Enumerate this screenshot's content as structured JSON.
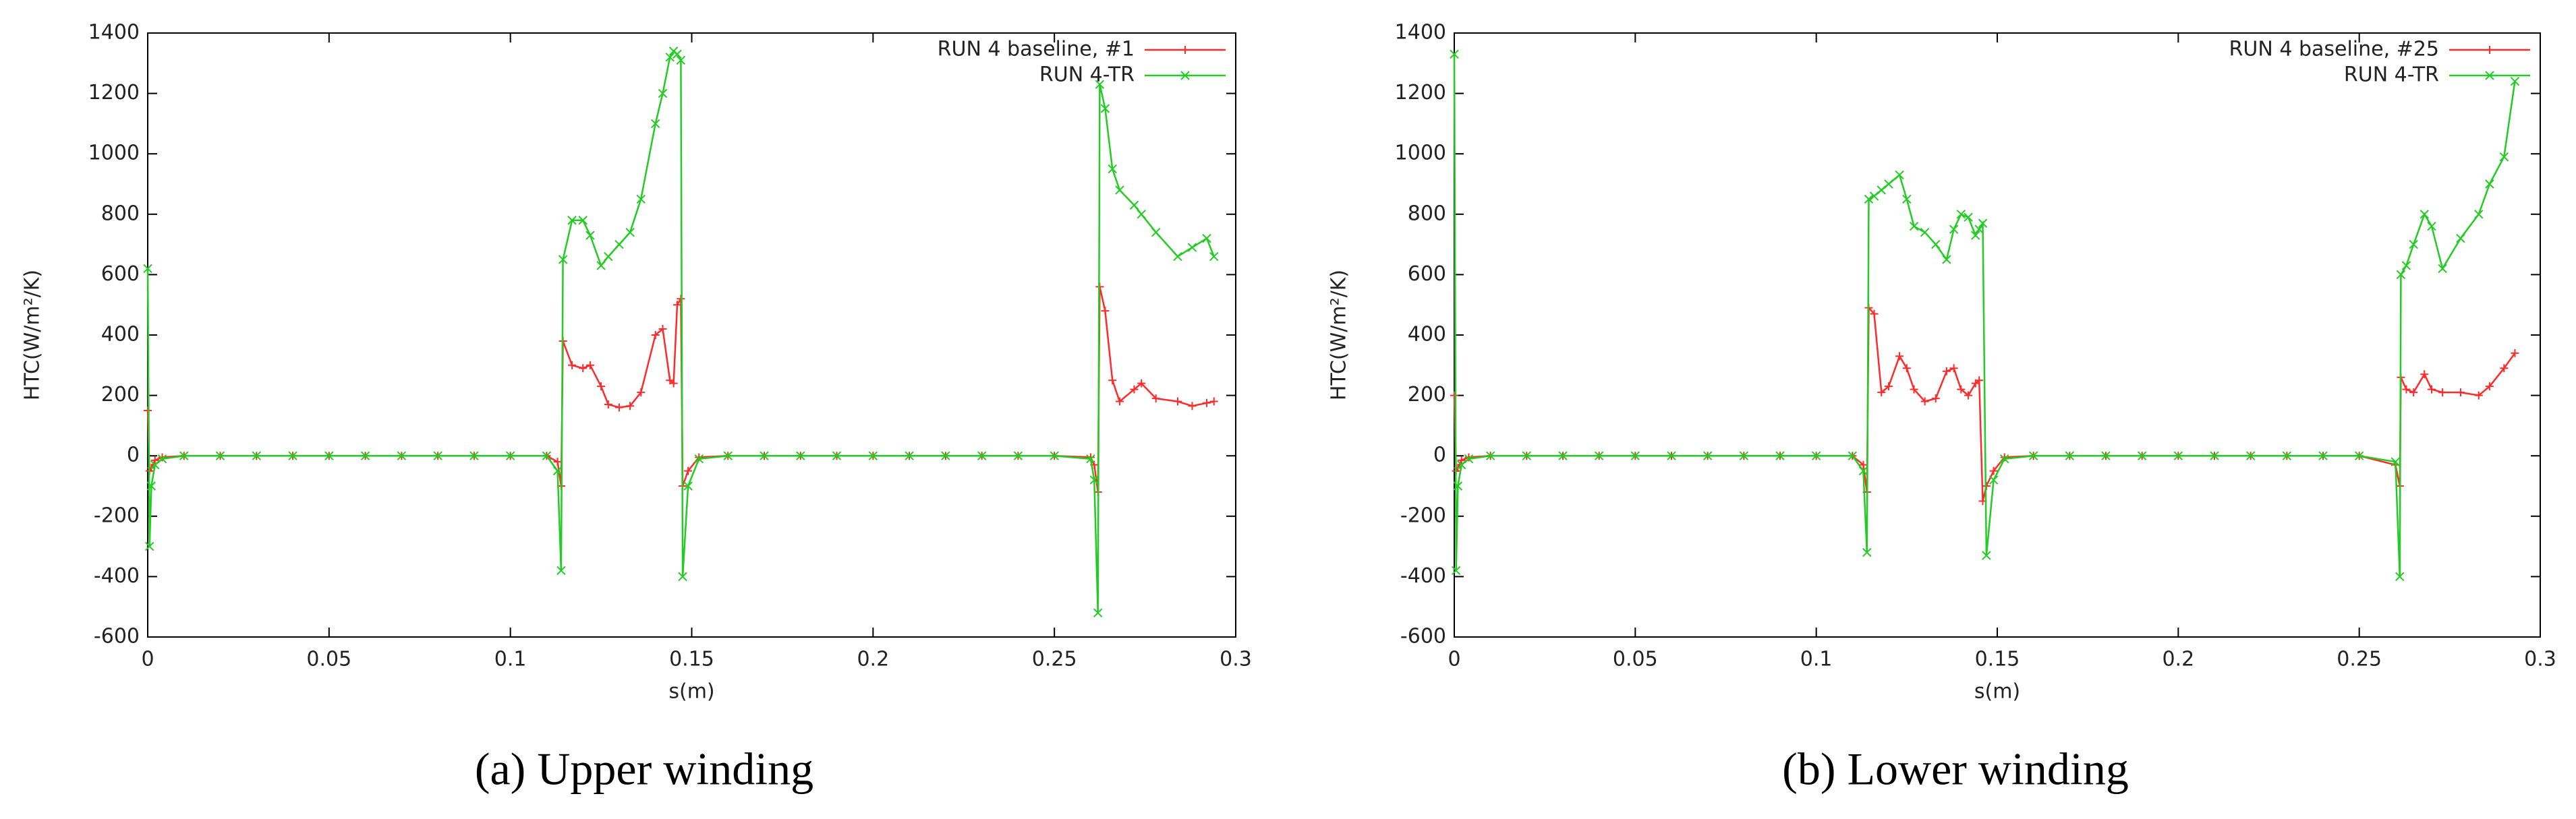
{
  "chart_data": [
    {
      "type": "line",
      "caption": "(a) Upper winding",
      "xlabel": "s(m)",
      "ylabel": "HTC(W/m²/K)",
      "xlim": [
        0,
        0.3
      ],
      "xticks": [
        0,
        0.05,
        0.1,
        0.15,
        0.2,
        0.25,
        0.3
      ],
      "ylim": [
        -600,
        1400
      ],
      "yticks": [
        -600,
        -400,
        -200,
        0,
        200,
        400,
        600,
        800,
        1000,
        1200,
        1400
      ],
      "legend": "upper right",
      "series": [
        {
          "name": "RUN 4 baseline, #1",
          "color": "#ff2a2a",
          "marker": "plus",
          "x": [
            0,
            0.0005,
            0.001,
            0.002,
            0.004,
            0.01,
            0.02,
            0.03,
            0.04,
            0.05,
            0.06,
            0.07,
            0.08,
            0.09,
            0.1,
            0.11,
            0.113,
            0.114,
            0.1145,
            0.117,
            0.12,
            0.122,
            0.125,
            0.127,
            0.13,
            0.133,
            0.136,
            0.14,
            0.142,
            0.144,
            0.145,
            0.146,
            0.147,
            0.1475,
            0.149,
            0.152,
            0.16,
            0.17,
            0.18,
            0.19,
            0.2,
            0.21,
            0.22,
            0.23,
            0.24,
            0.25,
            0.26,
            0.261,
            0.262,
            0.2625,
            0.264,
            0.266,
            0.268,
            0.272,
            0.274,
            0.278,
            0.284,
            0.288,
            0.292,
            0.294
          ],
          "values": [
            150,
            -50,
            -40,
            -15,
            -5,
            0,
            0,
            0,
            0,
            0,
            0,
            0,
            0,
            0,
            0,
            0,
            -20,
            -100,
            380,
            300,
            290,
            300,
            230,
            170,
            160,
            165,
            210,
            400,
            420,
            250,
            240,
            500,
            520,
            -100,
            -50,
            -5,
            0,
            0,
            0,
            0,
            0,
            0,
            0,
            0,
            0,
            0,
            -5,
            -30,
            -120,
            560,
            480,
            250,
            180,
            220,
            240,
            190,
            180,
            165,
            175,
            180
          ]
        },
        {
          "name": "RUN 4-TR",
          "color": "#22cc22",
          "marker": "cross",
          "x": [
            0,
            0.0005,
            0.001,
            0.002,
            0.004,
            0.01,
            0.02,
            0.03,
            0.04,
            0.05,
            0.06,
            0.07,
            0.08,
            0.09,
            0.1,
            0.11,
            0.113,
            0.114,
            0.1145,
            0.117,
            0.12,
            0.122,
            0.125,
            0.127,
            0.13,
            0.133,
            0.136,
            0.14,
            0.142,
            0.144,
            0.145,
            0.146,
            0.147,
            0.1475,
            0.149,
            0.152,
            0.16,
            0.17,
            0.18,
            0.19,
            0.2,
            0.21,
            0.22,
            0.23,
            0.24,
            0.25,
            0.26,
            0.261,
            0.262,
            0.2625,
            0.264,
            0.266,
            0.268,
            0.272,
            0.274,
            0.278,
            0.284,
            0.288,
            0.292,
            0.294
          ],
          "values": [
            620,
            -300,
            -100,
            -30,
            -10,
            0,
            0,
            0,
            0,
            0,
            0,
            0,
            0,
            0,
            0,
            0,
            -50,
            -380,
            650,
            780,
            780,
            730,
            630,
            660,
            700,
            740,
            850,
            1100,
            1200,
            1320,
            1340,
            1330,
            1310,
            -400,
            -100,
            -10,
            0,
            0,
            0,
            0,
            0,
            0,
            0,
            0,
            0,
            0,
            -10,
            -80,
            -520,
            1230,
            1150,
            950,
            880,
            830,
            800,
            740,
            660,
            690,
            720,
            660
          ]
        }
      ]
    },
    {
      "type": "line",
      "caption": "(b) Lower winding",
      "xlabel": "s(m)",
      "ylabel": "HTC(W/m²/K)",
      "xlim": [
        0,
        0.3
      ],
      "xticks": [
        0,
        0.05,
        0.1,
        0.15,
        0.2,
        0.25,
        0.3
      ],
      "ylim": [
        -600,
        1400
      ],
      "yticks": [
        -600,
        -400,
        -200,
        0,
        200,
        400,
        600,
        800,
        1000,
        1200,
        1400
      ],
      "legend": "upper right",
      "series": [
        {
          "name": "RUN 4 baseline, #25",
          "color": "#ff2a2a",
          "marker": "plus",
          "x": [
            0,
            0.0005,
            0.001,
            0.002,
            0.004,
            0.01,
            0.02,
            0.03,
            0.04,
            0.05,
            0.06,
            0.07,
            0.08,
            0.09,
            0.1,
            0.11,
            0.113,
            0.114,
            0.1145,
            0.116,
            0.118,
            0.12,
            0.123,
            0.125,
            0.127,
            0.13,
            0.133,
            0.136,
            0.138,
            0.14,
            0.142,
            0.144,
            0.145,
            0.146,
            0.147,
            0.149,
            0.152,
            0.16,
            0.17,
            0.18,
            0.19,
            0.2,
            0.21,
            0.22,
            0.23,
            0.24,
            0.25,
            0.26,
            0.2612,
            0.2615,
            0.263,
            0.265,
            0.268,
            0.27,
            0.273,
            0.278,
            0.283,
            0.286,
            0.29,
            0.293
          ],
          "values": [
            200,
            -50,
            -40,
            -15,
            -5,
            0,
            0,
            0,
            0,
            0,
            0,
            0,
            0,
            0,
            0,
            0,
            -30,
            -120,
            490,
            470,
            210,
            230,
            330,
            290,
            220,
            180,
            190,
            280,
            290,
            220,
            200,
            240,
            250,
            -150,
            -100,
            -50,
            -5,
            0,
            0,
            0,
            0,
            0,
            0,
            0,
            0,
            0,
            0,
            -30,
            -100,
            260,
            220,
            210,
            270,
            220,
            210,
            210,
            200,
            230,
            290,
            340
          ]
        },
        {
          "name": "RUN 4-TR",
          "color": "#22cc22",
          "marker": "cross",
          "x": [
            0,
            0.0005,
            0.001,
            0.002,
            0.004,
            0.01,
            0.02,
            0.03,
            0.04,
            0.05,
            0.06,
            0.07,
            0.08,
            0.09,
            0.1,
            0.11,
            0.113,
            0.114,
            0.1145,
            0.116,
            0.118,
            0.12,
            0.123,
            0.125,
            0.127,
            0.13,
            0.133,
            0.136,
            0.138,
            0.14,
            0.142,
            0.144,
            0.145,
            0.146,
            0.147,
            0.149,
            0.152,
            0.16,
            0.17,
            0.18,
            0.19,
            0.2,
            0.21,
            0.22,
            0.23,
            0.24,
            0.25,
            0.26,
            0.2612,
            0.2615,
            0.263,
            0.265,
            0.268,
            0.27,
            0.273,
            0.278,
            0.283,
            0.286,
            0.29,
            0.293
          ],
          "values": [
            1330,
            -380,
            -100,
            -30,
            -10,
            0,
            0,
            0,
            0,
            0,
            0,
            0,
            0,
            0,
            0,
            0,
            -50,
            -320,
            850,
            860,
            880,
            900,
            930,
            850,
            760,
            740,
            700,
            650,
            750,
            800,
            790,
            730,
            750,
            770,
            -330,
            -80,
            -10,
            0,
            0,
            0,
            0,
            0,
            0,
            0,
            0,
            0,
            0,
            -20,
            -400,
            600,
            630,
            700,
            800,
            760,
            620,
            720,
            800,
            900,
            990,
            1240
          ]
        }
      ]
    }
  ]
}
